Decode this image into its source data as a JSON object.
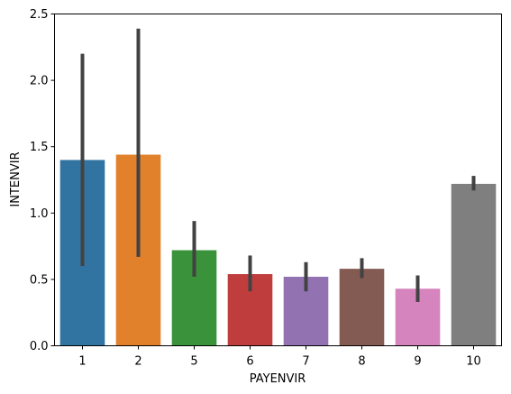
{
  "chart_data": {
    "type": "bar",
    "title": "",
    "xlabel": "PAYENVIR",
    "ylabel": "INTENVIR",
    "ylim": [
      0,
      2.5
    ],
    "yticks": [
      "0.0",
      "0.5",
      "1.0",
      "1.5",
      "2.0",
      "2.5"
    ],
    "categories": [
      "1",
      "2",
      "5",
      "6",
      "7",
      "8",
      "9",
      "10"
    ],
    "values": [
      1.4,
      1.44,
      0.72,
      0.54,
      0.52,
      0.58,
      0.43,
      1.22
    ],
    "error_low": [
      0.6,
      0.67,
      0.52,
      0.41,
      0.41,
      0.51,
      0.33,
      1.17
    ],
    "error_high": [
      2.2,
      2.39,
      0.94,
      0.68,
      0.63,
      0.66,
      0.53,
      1.28
    ],
    "colors": [
      "#3274a1",
      "#e1812c",
      "#3a923a",
      "#c03d3e",
      "#9372b2",
      "#845b53",
      "#d684bd",
      "#7f7f7f"
    ],
    "error_color": "#424242",
    "grid": false,
    "legend": "none"
  }
}
